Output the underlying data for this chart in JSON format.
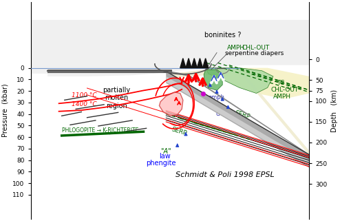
{
  "bg": "#ffffff",
  "title": "Schmidt & Poli 1998 EPSL",
  "pressure_label": "Pressure  (kbar)",
  "depth_label": "Depth   (km)",
  "fig_w": 4.94,
  "fig_h": 3.21,
  "dpi": 100,
  "press_ticks": [
    0,
    10,
    20,
    30,
    40,
    50,
    60,
    70,
    80,
    90,
    100,
    110
  ],
  "depth_ticks": [
    0,
    50,
    75,
    100,
    150,
    200,
    250,
    300
  ],
  "depth_yvals": [
    0,
    15,
    22.5,
    30,
    45,
    60,
    75,
    90
  ]
}
